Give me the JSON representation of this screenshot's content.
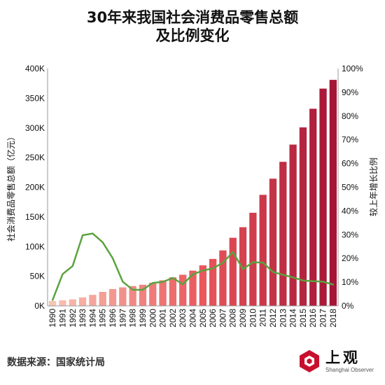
{
  "title_line1": "30年来我国社会消费品零售总额",
  "title_line2": "及比例变化",
  "source": "数据来源：国家统计局",
  "logo": {
    "cn": "上观",
    "en": "Shanghai Observer",
    "color": "#c8102e"
  },
  "chart_data": {
    "type": "bar",
    "categories": [
      "1990",
      "1991",
      "1992",
      "1993",
      "1994",
      "1995",
      "1996",
      "1997",
      "1998",
      "1999",
      "2000",
      "2001",
      "2002",
      "2003",
      "2004",
      "2005",
      "2006",
      "2007",
      "2008",
      "2009",
      "2010",
      "2011",
      "2012",
      "2013",
      "2014",
      "2015",
      "2016",
      "2017",
      "2018"
    ],
    "series": [
      {
        "name": "社会消费品零售总额（亿元）",
        "type": "bar",
        "axis": "left",
        "values": [
          8300,
          9415,
          10994,
          14270,
          18623,
          23614,
          28360,
          31253,
          33378,
          35648,
          39106,
          43055,
          48136,
          52516,
          59501,
          68353,
          79145,
          93572,
          114830,
          132678,
          156998,
          187206,
          214433,
          242843,
          271896,
          300931,
          332316,
          366262,
          380987
        ]
      },
      {
        "name": "较上年增长比例",
        "type": "line",
        "axis": "right",
        "values": [
          2.5,
          13.4,
          16.8,
          29.8,
          30.5,
          26.8,
          20.1,
          10.2,
          6.8,
          6.8,
          9.7,
          10.1,
          11.8,
          9.1,
          13.3,
          14.9,
          15.8,
          18.2,
          22.7,
          15.5,
          18.4,
          18.2,
          14.3,
          13.1,
          12.0,
          10.7,
          10.4,
          10.2,
          9.0
        ],
        "color": "#5aa33e"
      }
    ],
    "ylabel": "社会消费品零售总额（亿元）",
    "ylabel_right": "较上年增长比例",
    "ylim": [
      0,
      400000
    ],
    "ylim_right": [
      0,
      100
    ],
    "yticks": [
      "0K",
      "50K",
      "100K",
      "150K",
      "200K",
      "250K",
      "300K",
      "350K",
      "400K"
    ],
    "yticks_right": [
      "0%",
      "10%",
      "20%",
      "30%",
      "40%",
      "50%",
      "60%",
      "70%",
      "80%",
      "90%",
      "100%"
    ],
    "bar_color_low": "#f9c3b3",
    "bar_color_mid": "#e8545a",
    "bar_color_high": "#a51535",
    "grid": false
  }
}
